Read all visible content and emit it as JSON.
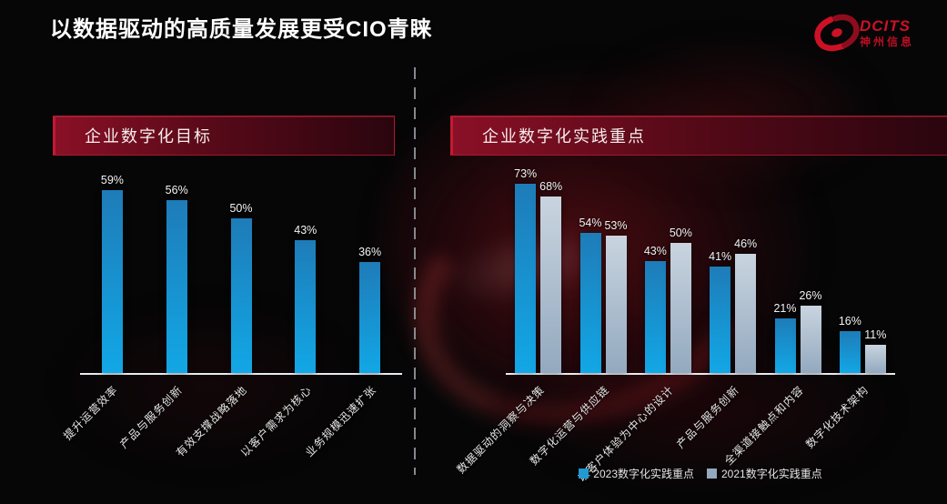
{
  "page": {
    "title": "以数据驱动的高质量发展更受CIO青睐"
  },
  "logo": {
    "brand": "DCITS",
    "subtitle": "神州信息",
    "color": "#cc1126"
  },
  "panels": {
    "left": {
      "header": "企业数字化目标"
    },
    "right": {
      "header": "企业数字化实践重点"
    }
  },
  "legend": [
    {
      "label": "2023数字化实践重点",
      "color": "#1f9ad2"
    },
    {
      "label": "2021数字化实践重点",
      "color": "#93a9bf"
    }
  ],
  "chart_data": [
    {
      "type": "bar",
      "title": "企业数字化目标",
      "unit": "%",
      "categories": [
        "提升运营效率",
        "产品与服务创新",
        "有效支撑战略落地",
        "以客户需求为核心",
        "业务规模迅速扩张"
      ],
      "series": [
        {
          "name": "企业数字化目标",
          "values": [
            59,
            56,
            50,
            43,
            36
          ],
          "color_top": "#1e7cb8",
          "color_bottom": "#12a7e6"
        }
      ],
      "ylim": [
        0,
        100
      ],
      "grid": false,
      "value_labels_shown": true,
      "legend_position": "none"
    },
    {
      "type": "bar",
      "title": "企业数字化实践重点",
      "unit": "%",
      "categories": [
        "数据驱动的洞察与决策",
        "数字化运营与供应链",
        "以客户体验为中心的设计",
        "产品与服务创新",
        "全渠道接触点和内容",
        "数字化技术架构"
      ],
      "series": [
        {
          "name": "2023数字化实践重点",
          "values": [
            73,
            54,
            43,
            41,
            21,
            16
          ],
          "color_top": "#1e7cb8",
          "color_bottom": "#12a7e6"
        },
        {
          "name": "2021数字化实践重点",
          "values": [
            68,
            53,
            50,
            46,
            26,
            11
          ],
          "color_top": "#c9d4df",
          "color_bottom": "#93a9bf"
        }
      ],
      "ylim": [
        0,
        100
      ],
      "grid": false,
      "value_labels_shown": true,
      "legend_position": "bottom"
    }
  ]
}
